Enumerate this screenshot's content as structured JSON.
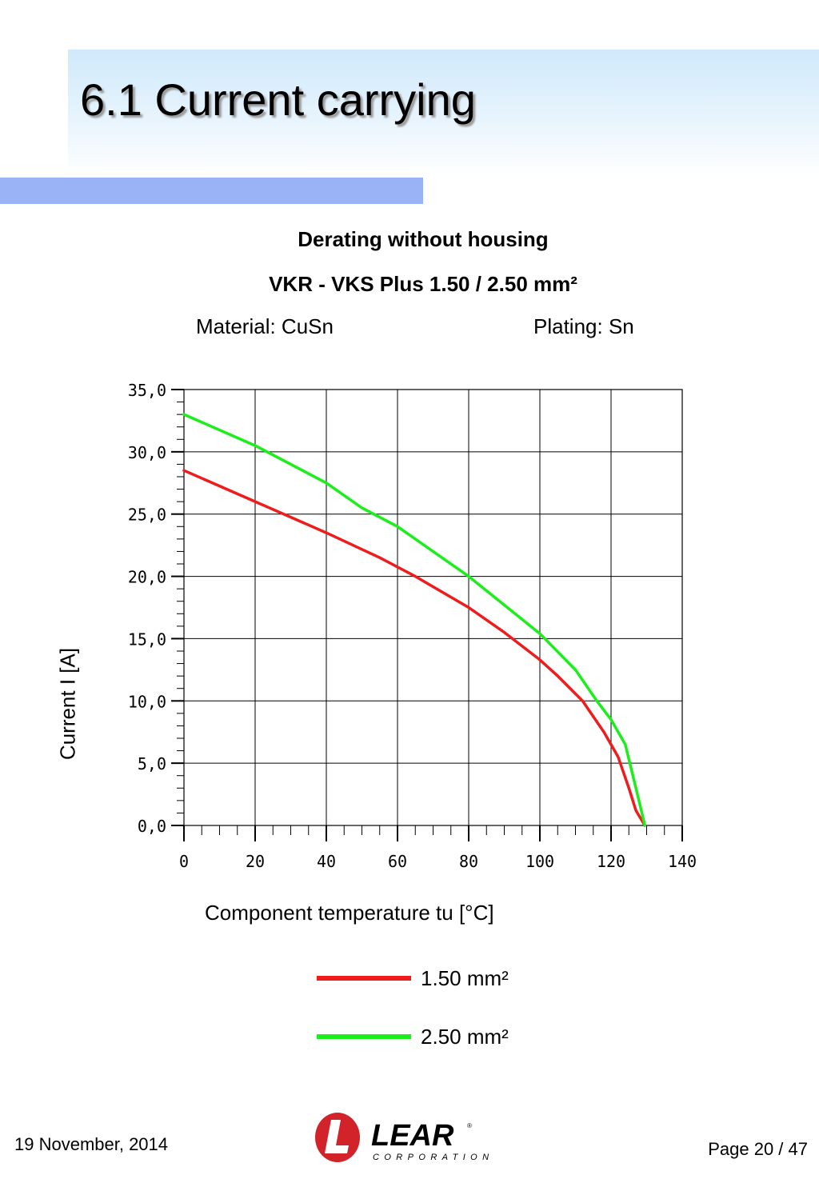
{
  "slide": {
    "title": "6.1 Current carrying",
    "date": "19 November, 2014",
    "page": "Page 20 / 47"
  },
  "header": {
    "line1": "Derating without housing",
    "line2": "VKR - VKS  Plus 1.50 / 2.50 mm²",
    "material": "Material: CuSn",
    "plating": "Plating: Sn"
  },
  "logo": {
    "name": "LEAR",
    "subtitle": "CORPORATION",
    "brand_color": "#d2232a"
  },
  "chart_data": {
    "type": "line",
    "title": "Derating without housing",
    "xlabel": "Component temperature tu [°C]",
    "ylabel": "Current I [A]",
    "xlim": [
      0,
      140
    ],
    "ylim": [
      0,
      35
    ],
    "x_ticks": [
      0,
      20,
      40,
      60,
      80,
      100,
      120,
      140
    ],
    "y_ticks": [
      0,
      5,
      10,
      15,
      20,
      25,
      30,
      35
    ],
    "x_tick_labels": [
      "0",
      "20",
      "40",
      "60",
      "80",
      "100",
      "120",
      "140"
    ],
    "y_tick_labels": [
      "0,0",
      "5,0",
      "10,0",
      "15,0",
      "20,0",
      "25,0",
      "30,0",
      "35,0"
    ],
    "grid": true,
    "legend_position": "bottom",
    "series": [
      {
        "name": "1.50 mm²",
        "color": "#ee1c1c",
        "points": [
          [
            0,
            28.5
          ],
          [
            20,
            26.0
          ],
          [
            40,
            23.5
          ],
          [
            55,
            21.5
          ],
          [
            65,
            20.0
          ],
          [
            80,
            17.5
          ],
          [
            90,
            15.5
          ],
          [
            100,
            13.3
          ],
          [
            105,
            12.0
          ],
          [
            112,
            10.0
          ],
          [
            118,
            7.5
          ],
          [
            122,
            5.5
          ],
          [
            125,
            3.0
          ],
          [
            127,
            1.2
          ],
          [
            129.5,
            0.0
          ]
        ]
      },
      {
        "name": "2.50 mm²",
        "color": "#1cee1c",
        "points": [
          [
            0,
            33.0
          ],
          [
            20,
            30.5
          ],
          [
            40,
            27.5
          ],
          [
            50,
            25.5
          ],
          [
            60,
            24.0
          ],
          [
            70,
            22.0
          ],
          [
            80,
            20.0
          ],
          [
            90,
            17.7
          ],
          [
            100,
            15.4
          ],
          [
            110,
            12.5
          ],
          [
            116,
            10.0
          ],
          [
            120,
            8.5
          ],
          [
            124,
            6.5
          ],
          [
            127,
            3.0
          ],
          [
            129.5,
            0.0
          ]
        ]
      }
    ]
  }
}
